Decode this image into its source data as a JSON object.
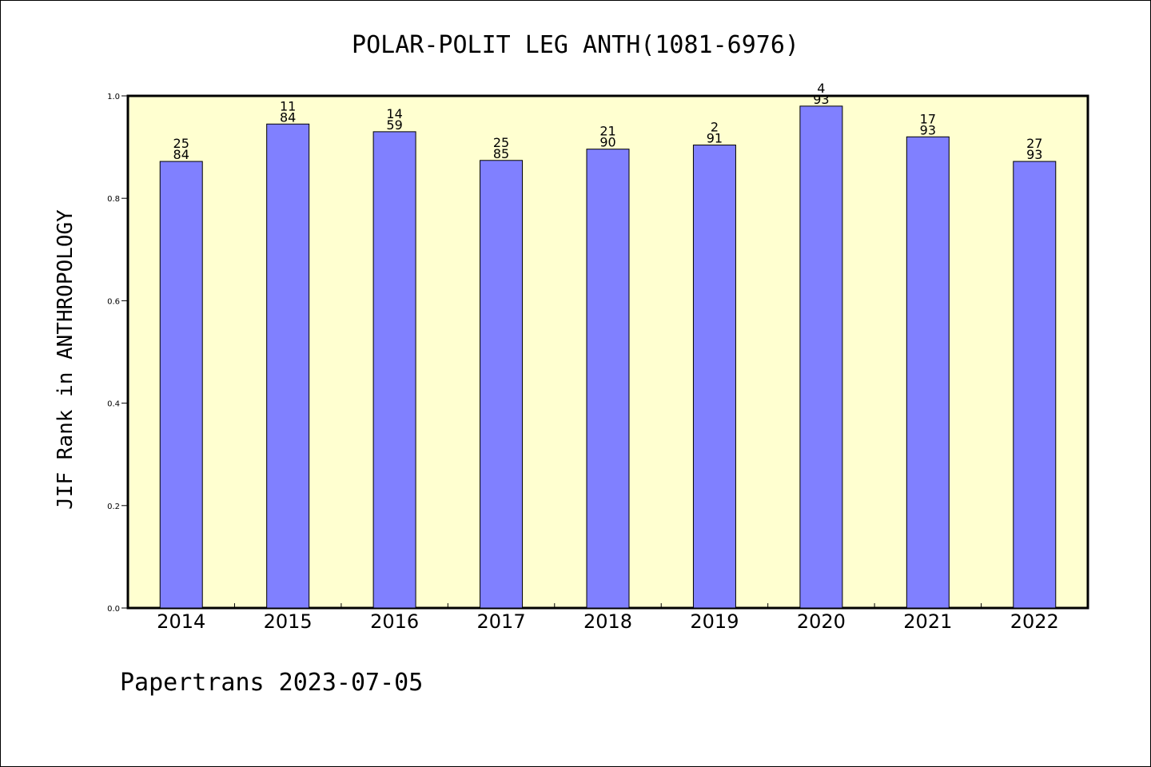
{
  "chart_data": {
    "type": "bar",
    "title": "POLAR-POLIT LEG ANTH(1081-6976)",
    "ylabel": "JIF Rank in ANTHROPOLOGY",
    "xlabel": "",
    "ylim": [
      0,
      1.0
    ],
    "yticks": [
      "0.0",
      "0.2",
      "0.4",
      "0.6",
      "0.8",
      "1.0"
    ],
    "categories": [
      "2014",
      "2015",
      "2016",
      "2017",
      "2018",
      "2019",
      "2020",
      "2021",
      "2022"
    ],
    "values": [
      0.872,
      0.945,
      0.93,
      0.874,
      0.896,
      0.904,
      0.98,
      0.92,
      0.872
    ],
    "rank_labels": [
      {
        "rank": "25",
        "total": "84"
      },
      {
        "rank": "11",
        "total": "84"
      },
      {
        "rank": "14",
        "total": "59"
      },
      {
        "rank": "25",
        "total": "85"
      },
      {
        "rank": "21",
        "total": "90"
      },
      {
        "rank": "2",
        "total": "91"
      },
      {
        "rank": "4",
        "total": "93"
      },
      {
        "rank": "17",
        "total": "93"
      },
      {
        "rank": "27",
        "total": "93"
      }
    ],
    "colors": {
      "bar": "#8080ff",
      "plot_background": "#ffffd0"
    },
    "grid": false,
    "legend": "none"
  },
  "footer": "Papertrans 2023-07-05"
}
